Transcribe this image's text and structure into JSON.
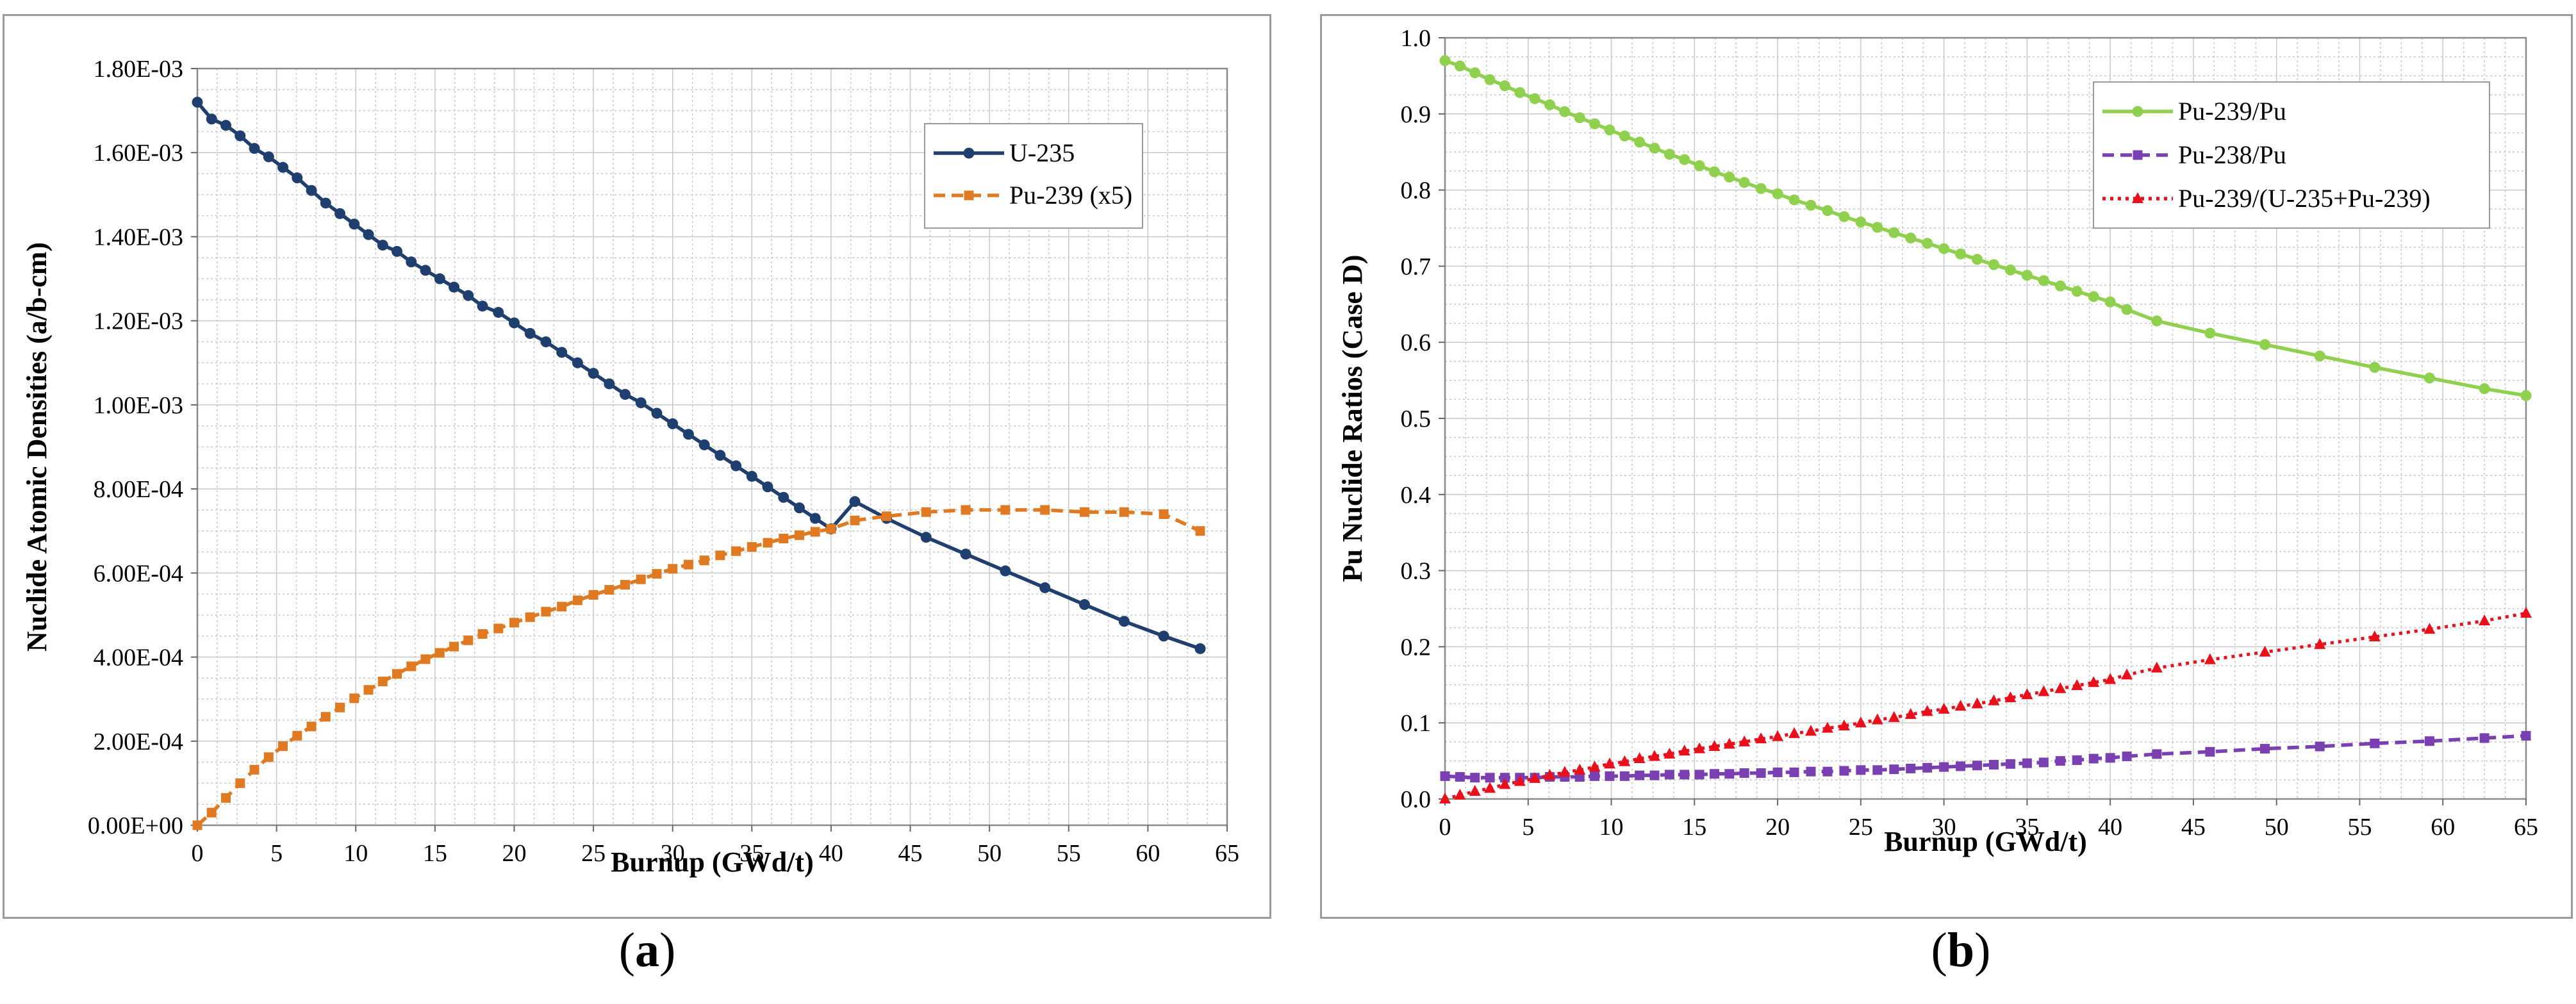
{
  "chart_data": [
    {
      "panel_label": "a",
      "type": "line",
      "xlabel": "Burnup (GWd/t)",
      "ylabel": "Nuclide Atomic Densities (a/b-cm)",
      "xlim": [
        0,
        65
      ],
      "ylim": [
        0,
        0.0018
      ],
      "x_ticks": [
        "0",
        "5",
        "10",
        "15",
        "20",
        "25",
        "30",
        "35",
        "40",
        "45",
        "50",
        "55",
        "60",
        "65"
      ],
      "y_ticks": [
        "0.00E+00",
        "2.00E-04",
        "4.00E-04",
        "6.00E-04",
        "8.00E-04",
        "1.00E-03",
        "1.20E-03",
        "1.40E-03",
        "1.60E-03",
        "1.80E-03"
      ],
      "grid": true,
      "legend_position": "top-right",
      "series": [
        {
          "name": "U-235",
          "color": "#1f3f6e",
          "marker": "circle",
          "dash": "solid",
          "x": [
            0,
            0.9,
            1.8,
            2.7,
            3.6,
            4.5,
            5.4,
            6.3,
            7.2,
            8.1,
            9.0,
            9.9,
            10.8,
            11.7,
            12.6,
            13.5,
            14.4,
            15.3,
            16.2,
            17.1,
            18.0,
            19.0,
            20.0,
            21.0,
            22.0,
            23.0,
            24.0,
            25.0,
            26.0,
            27.0,
            28.0,
            29.0,
            30.0,
            31.0,
            32.0,
            33.0,
            34.0,
            35.0,
            36.0,
            37.0,
            38.0,
            39.0,
            40.0,
            41.5,
            43.5,
            46.0,
            48.5,
            51.0,
            53.5,
            56.0,
            58.5,
            61.0,
            63.3
          ],
          "y": [
            0.00172,
            0.00168,
            0.001665,
            0.00164,
            0.00161,
            0.00159,
            0.001565,
            0.00154,
            0.00151,
            0.00148,
            0.001455,
            0.00143,
            0.001405,
            0.00138,
            0.001365,
            0.00134,
            0.00132,
            0.0013,
            0.00128,
            0.00126,
            0.001235,
            0.00122,
            0.001195,
            0.00117,
            0.00115,
            0.001125,
            0.0011,
            0.001075,
            0.00105,
            0.001025,
            0.001005,
            0.00098,
            0.000955,
            0.00093,
            0.000905,
            0.00088,
            0.000855,
            0.00083,
            0.000805,
            0.00078,
            0.000755,
            0.00073,
            0.000705,
            0.00077,
            0.00073,
            0.000685,
            0.000645,
            0.000605,
            0.000565,
            0.000525,
            0.000485,
            0.00045,
            0.00042
          ]
        },
        {
          "name": "Pu-239 (x5)",
          "color": "#e07a22",
          "marker": "square",
          "dash": "dashed",
          "x": [
            0,
            0.9,
            1.8,
            2.7,
            3.6,
            4.5,
            5.4,
            6.3,
            7.2,
            8.1,
            9.0,
            9.9,
            10.8,
            11.7,
            12.6,
            13.5,
            14.4,
            15.3,
            16.2,
            17.1,
            18.0,
            19.0,
            20.0,
            21.0,
            22.0,
            23.0,
            24.0,
            25.0,
            26.0,
            27.0,
            28.0,
            29.0,
            30.0,
            31.0,
            32.0,
            33.0,
            34.0,
            35.0,
            36.0,
            37.0,
            38.0,
            39.0,
            40.0,
            41.5,
            43.5,
            46.0,
            48.5,
            51.0,
            53.5,
            56.0,
            58.5,
            61.0,
            63.3
          ],
          "y": [
            0.0,
            3e-05,
            6.5e-05,
            0.0001,
            0.000132,
            0.000162,
            0.000188,
            0.000213,
            0.000235,
            0.000258,
            0.00028,
            0.000302,
            0.000322,
            0.000342,
            0.00036,
            0.000378,
            0.000395,
            0.00041,
            0.000425,
            0.00044,
            0.000455,
            0.000468,
            0.000482,
            0.000495,
            0.000508,
            0.00052,
            0.000535,
            0.000548,
            0.00056,
            0.000572,
            0.000585,
            0.000598,
            0.00061,
            0.00062,
            0.00063,
            0.000642,
            0.000652,
            0.000662,
            0.000672,
            0.000682,
            0.00069,
            0.000698,
            0.000705,
            0.000725,
            0.000735,
            0.000745,
            0.00075,
            0.00075,
            0.00075,
            0.000745,
            0.000745,
            0.00074,
            0.0007
          ]
        }
      ]
    },
    {
      "panel_label": "b",
      "type": "line",
      "xlabel": "Burnup (GWd/t)",
      "ylabel": "Pu Nuclide Ratios (Case D)",
      "xlim": [
        0,
        65
      ],
      "ylim": [
        0,
        1.0
      ],
      "x_ticks": [
        "0",
        "5",
        "10",
        "15",
        "20",
        "25",
        "30",
        "35",
        "40",
        "45",
        "50",
        "55",
        "60",
        "65"
      ],
      "y_ticks": [
        "0.0",
        "0.1",
        "0.2",
        "0.3",
        "0.4",
        "0.5",
        "0.6",
        "0.7",
        "0.8",
        "0.9",
        "1.0"
      ],
      "grid": true,
      "legend_position": "top-right",
      "series": [
        {
          "name": "Pu-239/Pu",
          "color": "#8fd14f",
          "marker": "circle",
          "dash": "solid",
          "x": [
            0,
            0.9,
            1.8,
            2.7,
            3.6,
            4.5,
            5.4,
            6.3,
            7.2,
            8.1,
            9.0,
            9.9,
            10.8,
            11.7,
            12.6,
            13.5,
            14.4,
            15.3,
            16.2,
            17.1,
            18.0,
            19.0,
            20.0,
            21.0,
            22.0,
            23.0,
            24.0,
            25.0,
            26.0,
            27.0,
            28.0,
            29.0,
            30.0,
            31.0,
            32.0,
            33.0,
            34.0,
            35.0,
            36.0,
            37.0,
            38.0,
            39.0,
            40.0,
            41.0,
            42.8,
            46.0,
            49.3,
            52.6,
            55.9,
            59.2,
            62.5,
            65.0
          ],
          "y": [
            0.97,
            0.963,
            0.954,
            0.945,
            0.937,
            0.928,
            0.92,
            0.912,
            0.903,
            0.895,
            0.887,
            0.879,
            0.871,
            0.863,
            0.855,
            0.847,
            0.84,
            0.832,
            0.824,
            0.817,
            0.81,
            0.802,
            0.795,
            0.787,
            0.78,
            0.773,
            0.765,
            0.758,
            0.751,
            0.744,
            0.737,
            0.73,
            0.723,
            0.716,
            0.709,
            0.702,
            0.695,
            0.688,
            0.681,
            0.674,
            0.667,
            0.66,
            0.653,
            0.643,
            0.628,
            0.612,
            0.597,
            0.582,
            0.567,
            0.553,
            0.539,
            0.53
          ]
        },
        {
          "name": "Pu-238/Pu",
          "color": "#7a3fb0",
          "marker": "square",
          "dash": "dashed",
          "x": [
            0,
            0.9,
            1.8,
            2.7,
            3.6,
            4.5,
            5.4,
            6.3,
            7.2,
            8.1,
            9.0,
            9.9,
            10.8,
            11.7,
            12.6,
            13.5,
            14.4,
            15.3,
            16.2,
            17.1,
            18.0,
            19.0,
            20.0,
            21.0,
            22.0,
            23.0,
            24.0,
            25.0,
            26.0,
            27.0,
            28.0,
            29.0,
            30.0,
            31.0,
            32.0,
            33.0,
            34.0,
            35.0,
            36.0,
            37.0,
            38.0,
            39.0,
            40.0,
            41.0,
            42.8,
            46.0,
            49.3,
            52.6,
            55.9,
            59.2,
            62.5,
            65.0
          ],
          "y": [
            0.03,
            0.029,
            0.028,
            0.028,
            0.028,
            0.028,
            0.028,
            0.029,
            0.029,
            0.029,
            0.03,
            0.03,
            0.03,
            0.031,
            0.031,
            0.032,
            0.032,
            0.032,
            0.033,
            0.033,
            0.034,
            0.034,
            0.035,
            0.035,
            0.036,
            0.036,
            0.037,
            0.038,
            0.038,
            0.039,
            0.04,
            0.041,
            0.042,
            0.043,
            0.044,
            0.045,
            0.046,
            0.047,
            0.048,
            0.05,
            0.051,
            0.053,
            0.054,
            0.056,
            0.059,
            0.062,
            0.066,
            0.069,
            0.073,
            0.076,
            0.08,
            0.083
          ]
        },
        {
          "name": "Pu-239/(U-235+Pu-239)",
          "color": "#e8111b",
          "marker": "triangle",
          "dash": "dotted",
          "x": [
            0,
            0.9,
            1.8,
            2.7,
            3.6,
            4.5,
            5.4,
            6.3,
            7.2,
            8.1,
            9.0,
            9.9,
            10.8,
            11.7,
            12.6,
            13.5,
            14.4,
            15.3,
            16.2,
            17.1,
            18.0,
            19.0,
            20.0,
            21.0,
            22.0,
            23.0,
            24.0,
            25.0,
            26.0,
            27.0,
            28.0,
            29.0,
            30.0,
            31.0,
            32.0,
            33.0,
            34.0,
            35.0,
            36.0,
            37.0,
            38.0,
            39.0,
            40.0,
            41.0,
            42.8,
            46.0,
            49.3,
            52.6,
            55.9,
            59.2,
            62.5,
            65.0
          ],
          "y": [
            0.0,
            0.005,
            0.01,
            0.014,
            0.019,
            0.023,
            0.027,
            0.031,
            0.035,
            0.038,
            0.042,
            0.046,
            0.049,
            0.053,
            0.056,
            0.059,
            0.063,
            0.066,
            0.069,
            0.072,
            0.075,
            0.079,
            0.082,
            0.086,
            0.089,
            0.093,
            0.096,
            0.1,
            0.104,
            0.107,
            0.111,
            0.115,
            0.118,
            0.122,
            0.125,
            0.129,
            0.133,
            0.137,
            0.141,
            0.145,
            0.149,
            0.153,
            0.157,
            0.163,
            0.172,
            0.183,
            0.193,
            0.203,
            0.213,
            0.223,
            0.234,
            0.244
          ]
        }
      ]
    }
  ]
}
